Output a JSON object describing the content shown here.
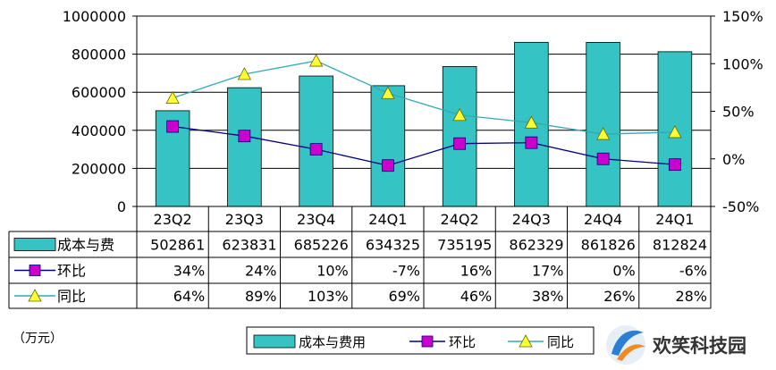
{
  "chart_data": {
    "type": "bar",
    "categories": [
      "23Q2",
      "23Q3",
      "23Q4",
      "24Q1",
      "24Q2",
      "24Q3",
      "24Q4",
      "24Q1"
    ],
    "series": [
      {
        "name": "成本与费",
        "axis": "left",
        "kind": "bar",
        "values": [
          502861,
          623831,
          685226,
          634325,
          735195,
          862329,
          861826,
          812824
        ],
        "labels": [
          "502861",
          "623831",
          "685226",
          "634325",
          "735195",
          "862329",
          "861826",
          "812824"
        ]
      },
      {
        "name": "环比",
        "axis": "right",
        "kind": "line",
        "unit": "%",
        "values": [
          34,
          24,
          10,
          -7,
          16,
          17,
          0,
          -6
        ],
        "labels": [
          "34%",
          "24%",
          "10%",
          "-7%",
          "16%",
          "17%",
          "0%",
          "-6%"
        ]
      },
      {
        "name": "同比",
        "axis": "right",
        "kind": "line",
        "unit": "%",
        "values": [
          64,
          89,
          103,
          69,
          46,
          38,
          26,
          28
        ],
        "labels": [
          "64%",
          "89%",
          "103%",
          "69%",
          "46%",
          "38%",
          "26%",
          "28%"
        ]
      }
    ],
    "y_left": {
      "range": [
        0,
        1000000
      ],
      "ticks": [
        "0",
        "200000",
        "400000",
        "600000",
        "800000",
        "1000000"
      ]
    },
    "y_right": {
      "range": [
        -50,
        150
      ],
      "ticks": [
        "-50%",
        "0%",
        "50%",
        "100%",
        "150%"
      ]
    },
    "grid": true,
    "unit_note": "（万元）",
    "legend": {
      "placement": "bottom",
      "items": [
        "成本与费用",
        "环比",
        "同比"
      ]
    },
    "colors": {
      "bar": "#36C3C4",
      "qoq": "#CC00CC",
      "yoy": "#FFFF33",
      "qoq_line": "#000080",
      "yoy_line": "#33A9B8"
    }
  },
  "watermark": {
    "text": "欢笑科技园"
  }
}
